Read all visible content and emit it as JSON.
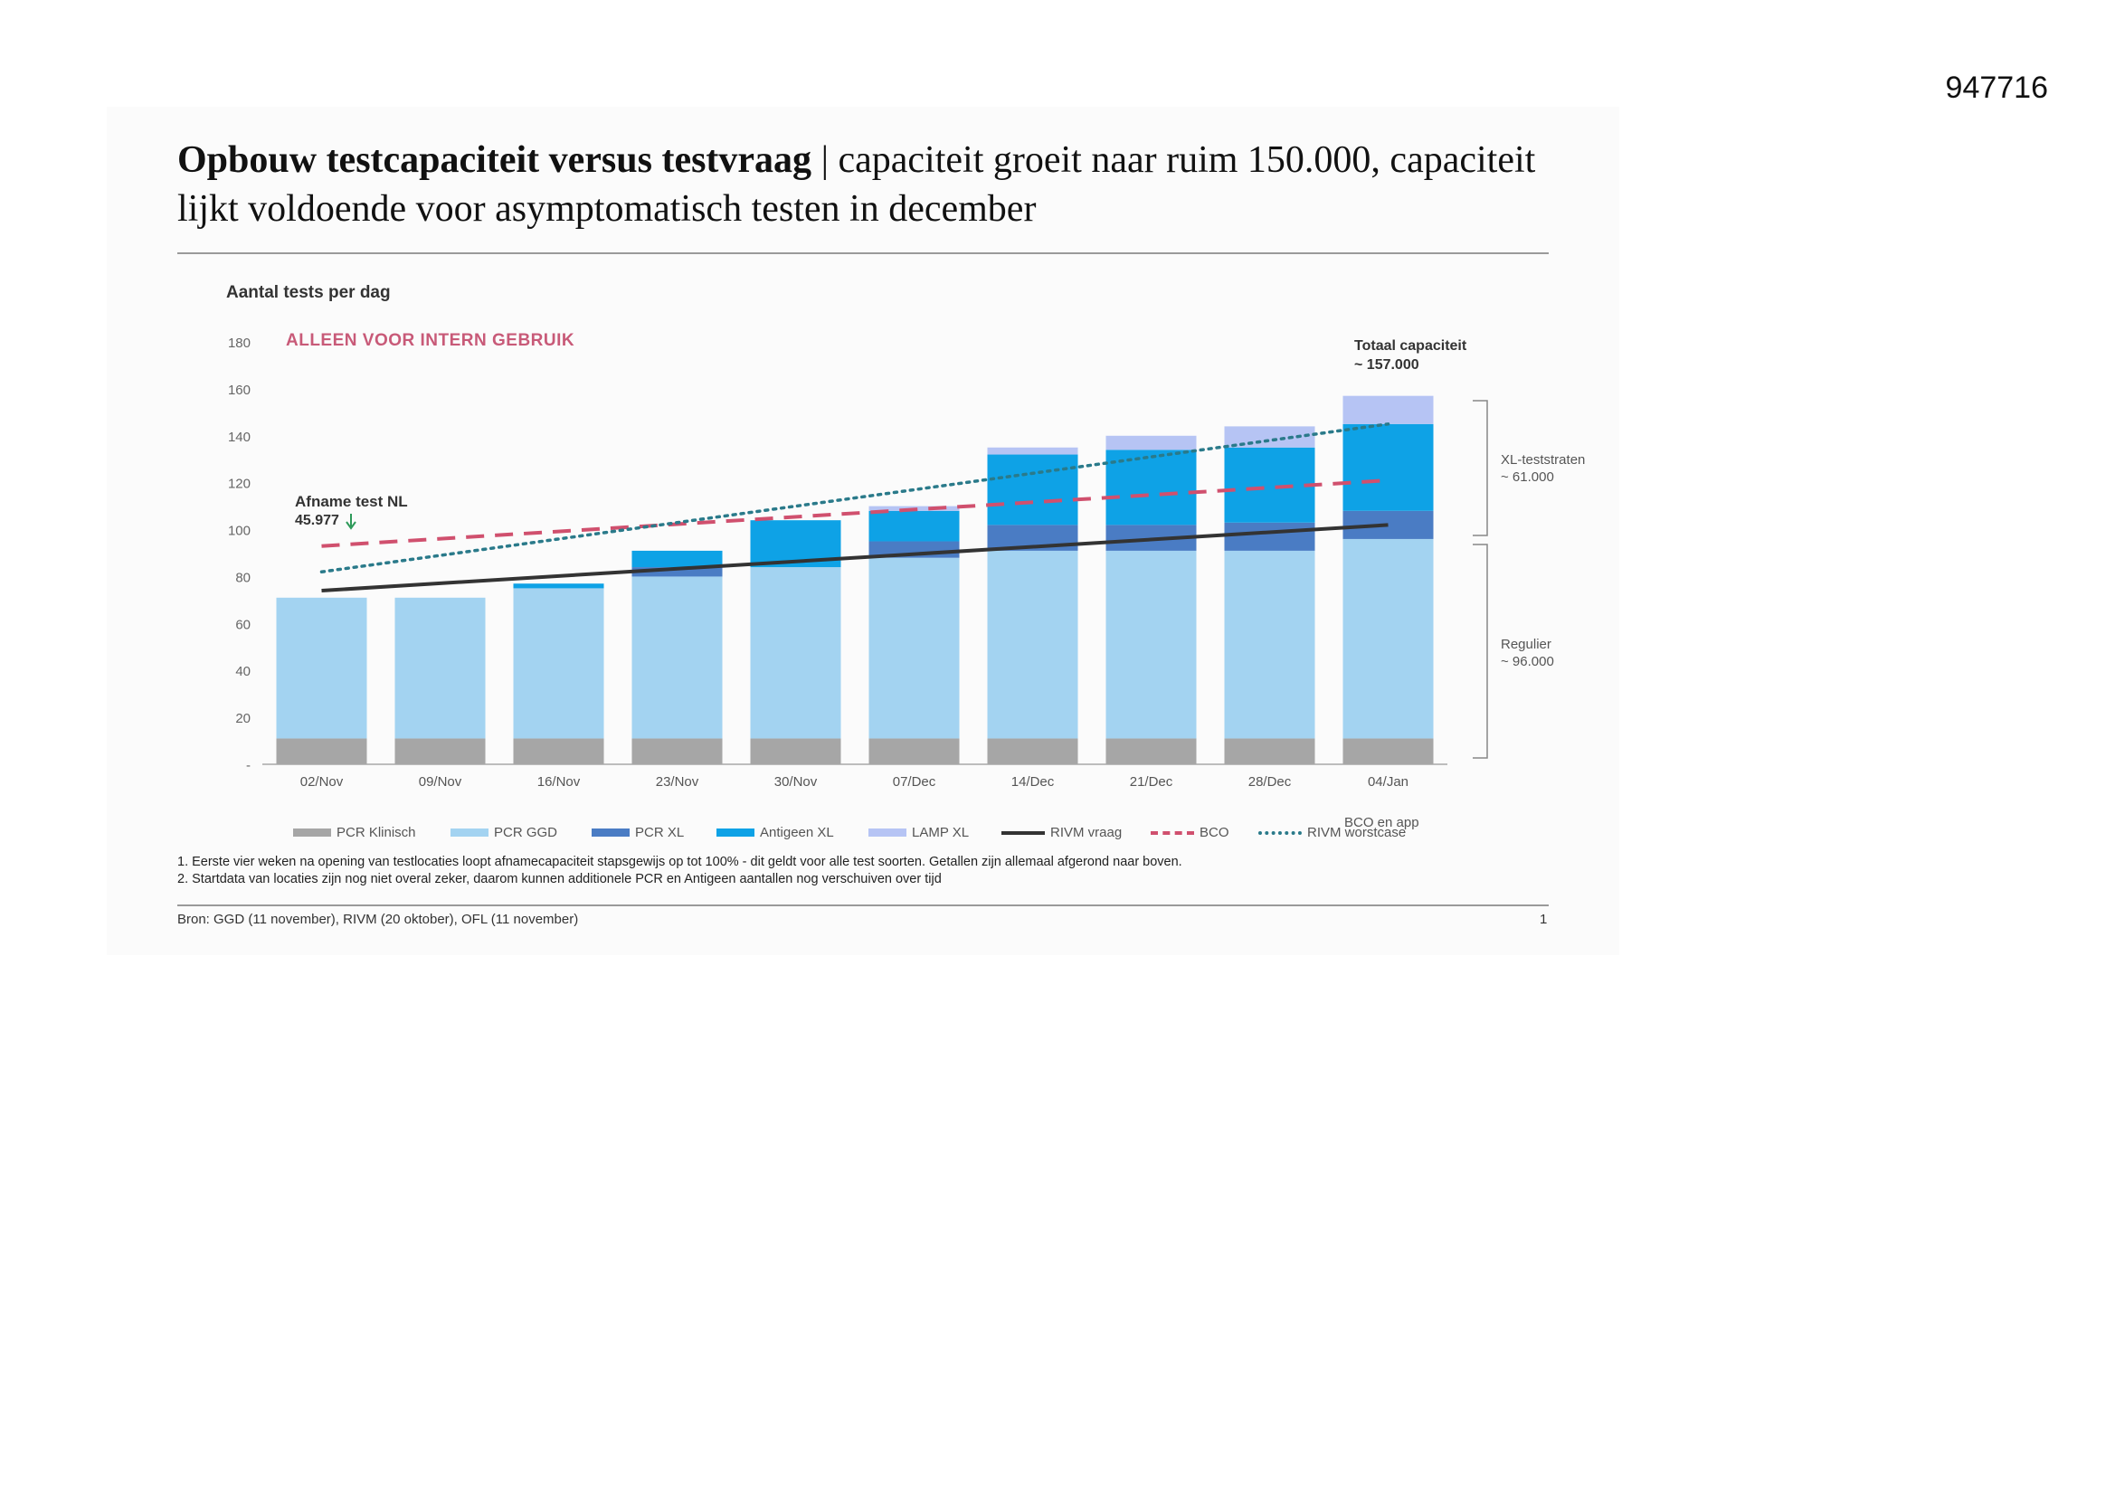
{
  "doc_id": "947716",
  "title": {
    "bold": "Opbouw testcapaciteit versus testvraag",
    "separator": " | ",
    "rest": "capaciteit groeit naar ruim 150.000, capaciteit lijkt voldoende voor asymptomatisch testen in december"
  },
  "confidential": "ALLEEN VOOR INTERN GEBRUIK",
  "chart_data": {
    "type": "bar",
    "stacked": true,
    "ylabel": "Aantal tests per dag",
    "ylim": [
      0,
      180
    ],
    "yticks": [
      "-",
      "20",
      "40",
      "60",
      "80",
      "100",
      "120",
      "140",
      "160",
      "180"
    ],
    "categories": [
      "02/Nov",
      "09/Nov",
      "16/Nov",
      "23/Nov",
      "30/Nov",
      "07/Dec",
      "14/Dec",
      "21/Dec",
      "28/Dec",
      "04/Jan"
    ],
    "series": [
      {
        "name": "PCR Klinisch",
        "color": "#a6a6a6",
        "values": [
          11,
          11,
          11,
          11,
          11,
          11,
          11,
          11,
          11,
          11
        ]
      },
      {
        "name": "PCR GGD",
        "color": "#a3d3f1",
        "values": [
          60,
          60,
          64,
          69,
          73,
          77,
          80,
          80,
          80,
          85
        ]
      },
      {
        "name": "PCR XL",
        "color": "#4a7cc4",
        "values": [
          0,
          0,
          0,
          4,
          0,
          7,
          11,
          11,
          12,
          12
        ]
      },
      {
        "name": "Antigeen XL",
        "color": "#0ea2e6",
        "values": [
          0,
          0,
          2,
          7,
          20,
          13,
          30,
          32,
          32,
          37
        ]
      },
      {
        "name": "LAMP XL",
        "color": "#b6c4f4",
        "values": [
          0,
          0,
          0,
          0,
          0,
          2,
          3,
          6,
          9,
          12
        ]
      }
    ],
    "lines": [
      {
        "name": "RIVM vraag",
        "style": "solid",
        "color": "#333333",
        "values": [
          74,
          null,
          null,
          null,
          null,
          null,
          null,
          null,
          null,
          102
        ]
      },
      {
        "name": "BCO",
        "style": "dashed",
        "color": "#d0506e",
        "values": [
          93,
          null,
          null,
          null,
          null,
          null,
          null,
          null,
          null,
          121
        ]
      },
      {
        "name": "RIVM worstcase",
        "style": "dotted",
        "color": "#2a7a8a",
        "values": [
          82,
          null,
          null,
          null,
          null,
          null,
          null,
          null,
          null,
          145
        ]
      }
    ],
    "legend_placement": "bottom",
    "grid": false,
    "annotations": {
      "afname_label": "Afname test NL",
      "afname_value": "45.977",
      "arrow_color": "#2e9a5a",
      "total_label": "Totaal capaciteit",
      "total_value": "~ 157.000",
      "xl_label": "XL-teststraten",
      "xl_value": "~ 61.000",
      "regulier_label": "Regulier",
      "regulier_value": "~ 96.000",
      "bco_extra": "BCO en app"
    }
  },
  "footnotes": [
    "1. Eerste vier weken na opening van testlocaties loopt afnamecapaciteit stapsgewijs op tot 100% - dit geldt voor alle test soorten. Getallen zijn allemaal afgerond naar boven.",
    "2. Startdata van locaties zijn nog niet overal zeker, daarom kunnen additionele PCR en Antigeen aantallen nog verschuiven over tijd"
  ],
  "source": "Bron: GGD (11 november), RIVM (20 oktober), OFL (11 november)",
  "page_number": "1"
}
